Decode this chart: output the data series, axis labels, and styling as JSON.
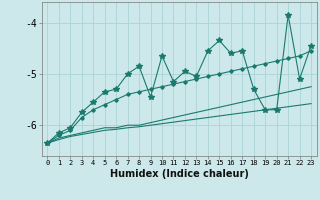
{
  "xlabel": "Humidex (Indice chaleur)",
  "bg_color": "#cce8ea",
  "grid_color": "#aad4d8",
  "line_color": "#1a7a6e",
  "x": [
    0,
    1,
    2,
    3,
    4,
    5,
    6,
    7,
    8,
    9,
    10,
    11,
    12,
    13,
    14,
    15,
    16,
    17,
    18,
    19,
    20,
    21,
    22,
    23
  ],
  "y_zigzag": [
    -6.35,
    -6.15,
    -6.05,
    -5.75,
    -5.55,
    -5.35,
    -5.3,
    -5.0,
    -4.85,
    -5.45,
    -4.65,
    -5.15,
    -4.95,
    -5.05,
    -4.55,
    -4.35,
    -4.6,
    -4.55,
    -5.3,
    -5.7,
    -5.7,
    -3.85,
    -5.1,
    -4.45
  ],
  "y_line1": [
    -6.35,
    -6.2,
    -6.1,
    -5.85,
    -5.7,
    -5.6,
    -5.5,
    -5.4,
    -5.35,
    -5.3,
    -5.25,
    -5.2,
    -5.15,
    -5.1,
    -5.05,
    -5.0,
    -4.95,
    -4.9,
    -4.85,
    -4.8,
    -4.75,
    -4.7,
    -4.65,
    -4.55
  ],
  "y_flat1": [
    -6.35,
    -6.25,
    -6.2,
    -6.15,
    -6.1,
    -6.05,
    -6.05,
    -6.0,
    -6.0,
    -5.95,
    -5.9,
    -5.85,
    -5.8,
    -5.75,
    -5.7,
    -5.65,
    -5.6,
    -5.55,
    -5.5,
    -5.45,
    -5.4,
    -5.35,
    -5.3,
    -5.25
  ],
  "y_flat2": [
    -6.35,
    -6.28,
    -6.22,
    -6.18,
    -6.14,
    -6.1,
    -6.08,
    -6.05,
    -6.03,
    -6.0,
    -5.97,
    -5.94,
    -5.91,
    -5.88,
    -5.85,
    -5.82,
    -5.79,
    -5.76,
    -5.73,
    -5.7,
    -5.67,
    -5.64,
    -5.61,
    -5.58
  ],
  "ylim": [
    -6.6,
    -3.6
  ],
  "xlim": [
    -0.5,
    23.5
  ],
  "yticks": [
    -6,
    -5,
    -4
  ],
  "xticks": [
    0,
    1,
    2,
    3,
    4,
    5,
    6,
    7,
    8,
    9,
    10,
    11,
    12,
    13,
    14,
    15,
    16,
    17,
    18,
    19,
    20,
    21,
    22,
    23
  ]
}
